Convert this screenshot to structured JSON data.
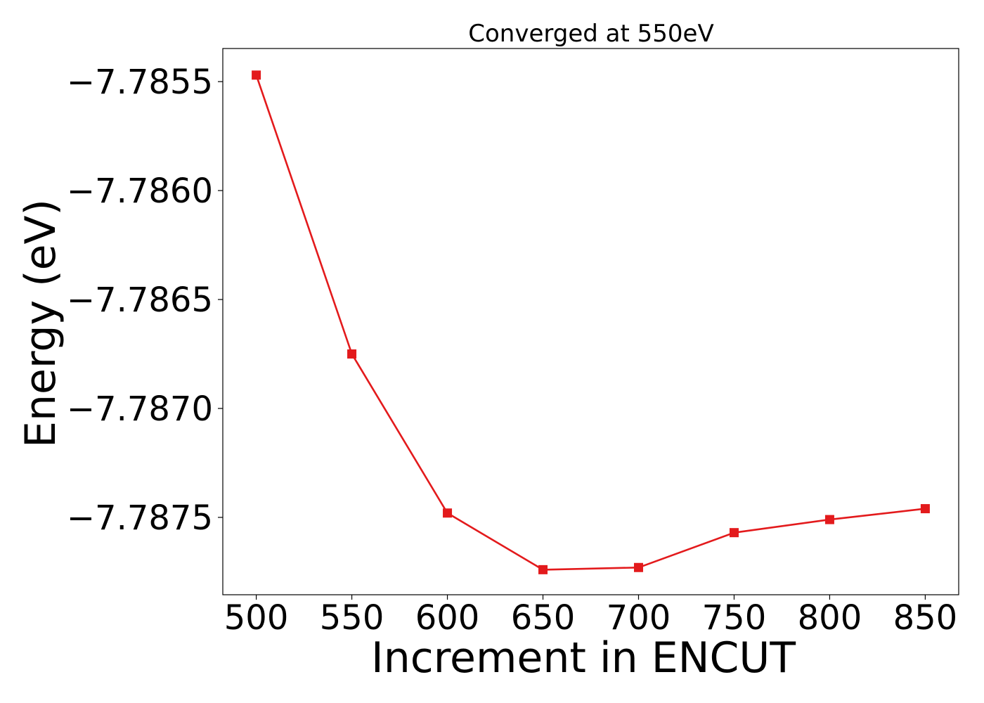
{
  "chart_data": {
    "type": "line",
    "title": "Converged at 550eV",
    "xlabel": "Increment in ENCUT",
    "ylabel": "Energy (eV)",
    "x": [
      500,
      550,
      600,
      650,
      700,
      750,
      800,
      850
    ],
    "series": [
      {
        "values": [
          -7.78547,
          -7.78675,
          -7.78748,
          -7.78774,
          -7.78773,
          -7.78757,
          -7.78751,
          -7.78746
        ],
        "color": "#e31a1c",
        "marker": "square"
      }
    ],
    "xticks": [
      500,
      550,
      600,
      650,
      700,
      750,
      800,
      850
    ],
    "xtick_labels": [
      "500",
      "550",
      "600",
      "650",
      "700",
      "750",
      "800",
      "850"
    ],
    "yticks": [
      -7.7855,
      -7.786,
      -7.7865,
      -7.787,
      -7.7875
    ],
    "ytick_labels": [
      "−7.7855",
      "−7.7860",
      "−7.7865",
      "−7.7870",
      "−7.7875"
    ],
    "xlim": [
      482.5,
      867.5
    ],
    "ylim": [
      -7.787855,
      -7.785348
    ],
    "grid": false,
    "legend": "none"
  }
}
